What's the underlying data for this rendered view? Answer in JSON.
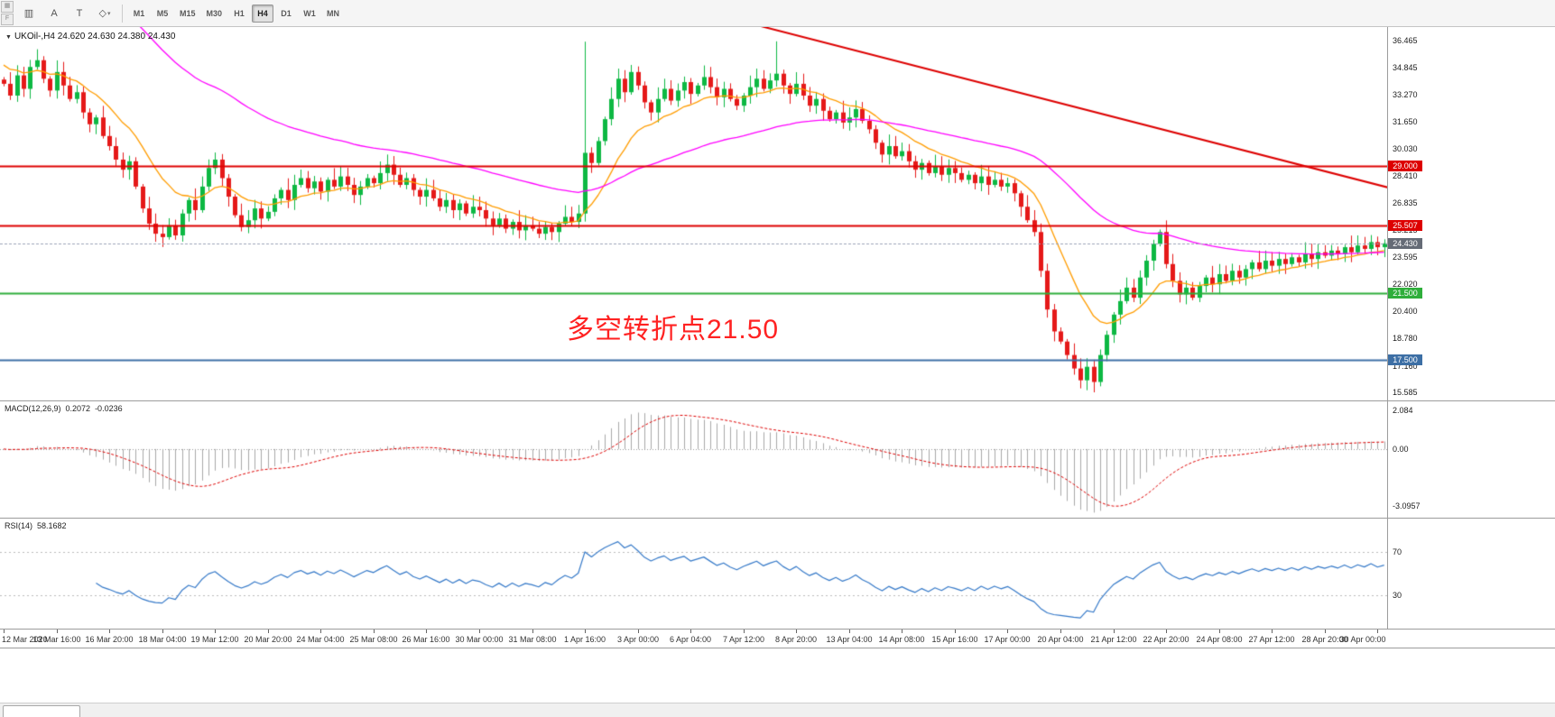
{
  "toolbar": {
    "edge_icons": [
      "▦",
      "F"
    ],
    "icon_buttons": [
      {
        "name": "chart-type-icon",
        "glyph": "▥"
      },
      {
        "name": "annotation-a-icon",
        "glyph": "A"
      },
      {
        "name": "annotation-t-icon",
        "glyph": "T"
      },
      {
        "name": "shapes-dropdown-icon",
        "glyph": "◇",
        "caret": true
      }
    ],
    "timeframes": [
      "M1",
      "M5",
      "M15",
      "M30",
      "H1",
      "H4",
      "D1",
      "W1",
      "MN"
    ],
    "selected_timeframe": "H4"
  },
  "chart": {
    "title": "UKOil-,H4 24.620 24.630 24.380 24.430",
    "annotation": {
      "text": "多空转折点21.50",
      "color": "#ff2222"
    },
    "price_axis": {
      "ticks": [
        "36.465",
        "34.845",
        "33.270",
        "31.650",
        "30.030",
        "28.410",
        "26.835",
        "25.215",
        "23.595",
        "22.020",
        "20.400",
        "18.780",
        "17.160",
        "15.585"
      ]
    },
    "levels": [
      {
        "label": "29.000",
        "value": 29.0,
        "color": "#dd0000",
        "width": 2
      },
      {
        "label": "25.507",
        "value": 25.507,
        "color": "#dd0000",
        "width": 2
      },
      {
        "label": "21.500",
        "value": 21.5,
        "color": "#2fae3b",
        "width": 2
      },
      {
        "label": "17.500",
        "value": 17.5,
        "color": "#3d6fa5",
        "width": 2
      }
    ],
    "current_price": {
      "label": "24.430",
      "value": 24.43,
      "badge_color": "#656b76",
      "line_color": "#9aa3b8"
    },
    "trendline": {
      "from_index": 98,
      "from_price": 39.0,
      "to_index": 213,
      "to_price": 27.4,
      "color": "#dd0000",
      "width": 2
    },
    "moving_averages": [
      {
        "name": "fast-ma",
        "period": 13,
        "seed": 35.2,
        "color": "#ff9c00",
        "width": 1.3
      },
      {
        "name": "slow-ma",
        "period": 55,
        "seed": 44.0,
        "color": "#ff00ff",
        "width": 1.3
      }
    ],
    "candles": {
      "up_color": "#0db843",
      "down_color": "#e51919",
      "closes": [
        33.9,
        33.2,
        34.4,
        33.6,
        34.9,
        35.3,
        34.2,
        33.5,
        34.6,
        33.8,
        33.0,
        33.4,
        32.2,
        31.5,
        31.9,
        30.8,
        30.2,
        29.4,
        28.8,
        29.3,
        27.8,
        26.5,
        25.6,
        25.0,
        24.8,
        25.5,
        24.9,
        26.2,
        27.0,
        26.4,
        27.8,
        28.9,
        29.4,
        28.3,
        27.2,
        26.1,
        25.4,
        25.8,
        26.5,
        25.9,
        26.3,
        27.1,
        27.6,
        27.0,
        27.9,
        28.3,
        27.7,
        28.1,
        27.5,
        28.2,
        27.8,
        28.4,
        27.9,
        27.3,
        27.8,
        28.3,
        28.0,
        28.6,
        29.1,
        28.5,
        27.9,
        28.3,
        27.6,
        27.2,
        27.6,
        27.1,
        26.6,
        27.0,
        26.4,
        26.8,
        26.2,
        26.6,
        26.4,
        25.9,
        25.5,
        25.9,
        25.3,
        25.7,
        25.2,
        25.5,
        25.3,
        25.0,
        25.4,
        25.1,
        25.6,
        26.0,
        25.7,
        26.2,
        29.8,
        29.2,
        30.5,
        31.8,
        33.0,
        34.2,
        33.4,
        34.6,
        33.8,
        32.8,
        32.2,
        33.0,
        33.6,
        32.9,
        33.5,
        34.0,
        33.3,
        33.8,
        34.3,
        33.7,
        33.1,
        33.6,
        33.0,
        32.6,
        33.2,
        33.7,
        34.2,
        33.6,
        34.1,
        34.5,
        33.8,
        33.3,
        33.9,
        33.2,
        32.6,
        33.0,
        32.3,
        31.8,
        32.2,
        31.6,
        31.9,
        32.4,
        31.7,
        31.2,
        30.4,
        29.7,
        30.2,
        29.6,
        29.9,
        29.3,
        28.8,
        29.2,
        28.6,
        29.0,
        28.5,
        28.9,
        28.6,
        28.2,
        28.5,
        28.0,
        28.4,
        27.9,
        28.2,
        27.8,
        28.0,
        27.4,
        26.6,
        25.8,
        25.1,
        22.8,
        20.5,
        19.2,
        18.6,
        17.8,
        17.0,
        16.3,
        17.1,
        16.2,
        17.8,
        19.0,
        20.2,
        21.0,
        21.8,
        21.2,
        22.4,
        23.4,
        24.4,
        25.1,
        23.2,
        22.2,
        21.4,
        21.8,
        21.2,
        21.9,
        22.4,
        22.0,
        22.6,
        22.2,
        22.8,
        22.4,
        22.9,
        23.3,
        22.9,
        23.4,
        23.1,
        23.5,
        23.2,
        23.6,
        23.3,
        23.8,
        23.5,
        23.9,
        23.7,
        24.0,
        23.8,
        24.2,
        23.9,
        24.3,
        24.1,
        24.5,
        24.2,
        24.43
      ],
      "spikes": {
        "5": {
          "high": 35.95
        },
        "88": {
          "high": 36.4
        },
        "117": {
          "high": 36.42
        },
        "165": {
          "low": 15.585
        }
      }
    }
  },
  "macd": {
    "label": "MACD(12,26,9)",
    "value_main": "0.2072",
    "value_signal": "-0.0236",
    "fast": 12,
    "slow": 26,
    "signal": 9,
    "axis": {
      "top": "2.084",
      "zero": "0.00",
      "bottom": "-3.0957"
    },
    "hist_color": "#a8a8a8",
    "signal_color": "#dd0000"
  },
  "rsi": {
    "label": "RSI(14)",
    "value": "58.1682",
    "period": 14,
    "levels": [
      70,
      30
    ],
    "line_color": "#3579c8",
    "level_color": "#bbbbbb"
  },
  "time_axis": {
    "labels": [
      "12 Mar 2020",
      "13 Mar 16:00",
      "16 Mar 20:00",
      "18 Mar 04:00",
      "19 Mar 12:00",
      "20 Mar 20:00",
      "24 Mar 04:00",
      "25 Mar 08:00",
      "26 Mar 16:00",
      "30 Mar 00:00",
      "31 Mar 08:00",
      "1 Apr 16:00",
      "3 Apr 00:00",
      "6 Apr 04:00",
      "7 Apr 12:00",
      "8 Apr 20:00",
      "13 Apr 04:00",
      "14 Apr 08:00",
      "15 Apr 16:00",
      "17 Apr 00:00",
      "20 Apr 04:00",
      "21 Apr 12:00",
      "22 Apr 20:00",
      "24 Apr 08:00",
      "27 Apr 12:00",
      "28 Apr 20:00",
      "30 Apr 00:00"
    ]
  }
}
